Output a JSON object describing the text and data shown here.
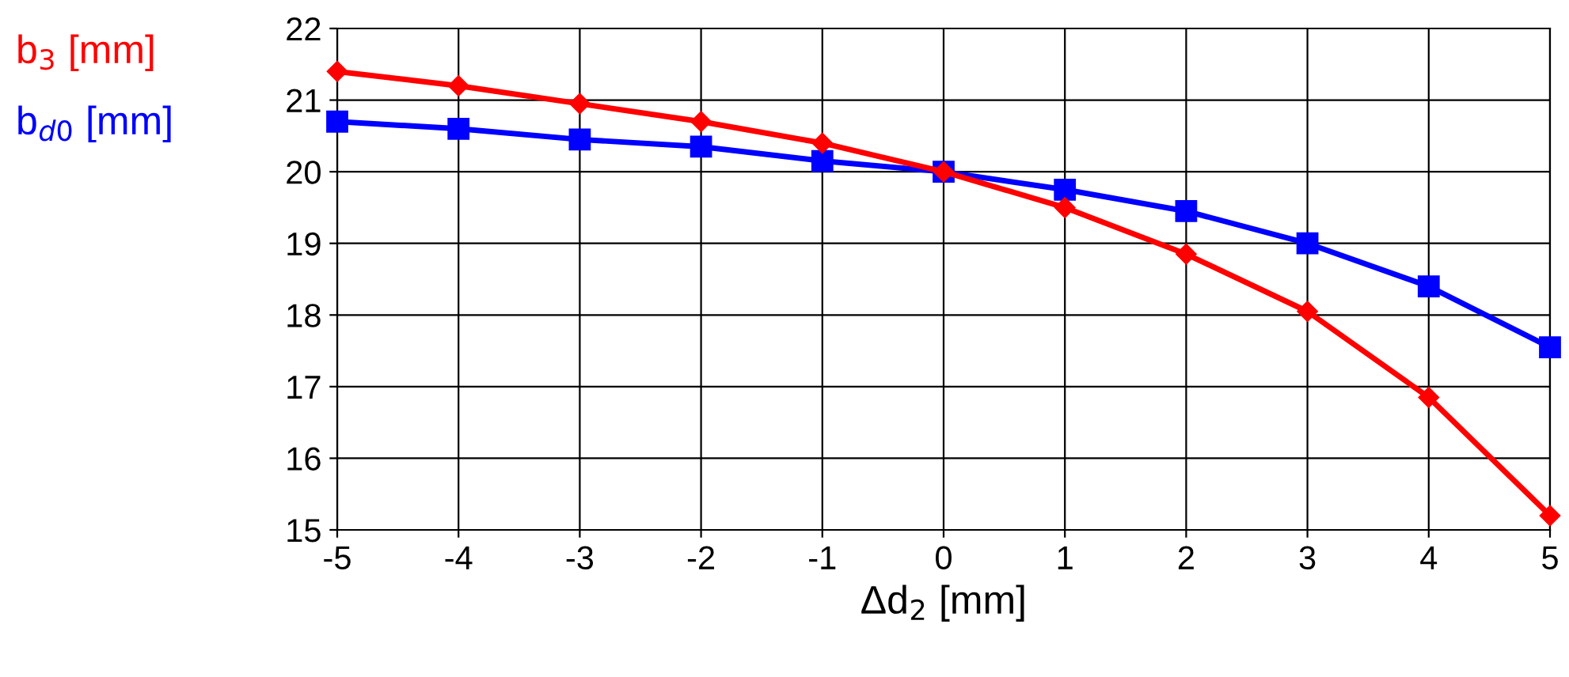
{
  "chart_data": {
    "type": "line",
    "xlabel": "Δd$_{2}$ [mm]",
    "x": [
      -5,
      -4,
      -3,
      -2,
      -1,
      0,
      1,
      2,
      3,
      4,
      5
    ],
    "series": [
      {
        "name": "b$_{3}$ [mm]",
        "color": "#ff0000",
        "marker": "diamond",
        "values": [
          21.4,
          21.2,
          20.95,
          20.7,
          20.4,
          20.0,
          19.5,
          18.85,
          18.05,
          16.85,
          15.2
        ]
      },
      {
        "name": "b$_{d0}$ [mm]",
        "color": "#0000ff",
        "marker": "square",
        "values": [
          20.7,
          20.6,
          20.45,
          20.35,
          20.15,
          20.0,
          19.75,
          19.45,
          19.0,
          18.4,
          17.55
        ]
      }
    ],
    "xlim": [
      -5,
      5
    ],
    "xticks": [
      -5,
      -4,
      -3,
      -2,
      -1,
      0,
      1,
      2,
      3,
      4,
      5
    ],
    "ylim": [
      15,
      22
    ],
    "yticks": [
      15,
      16,
      17,
      18,
      19,
      20,
      21,
      22
    ],
    "grid": true,
    "line_style": "solid"
  }
}
